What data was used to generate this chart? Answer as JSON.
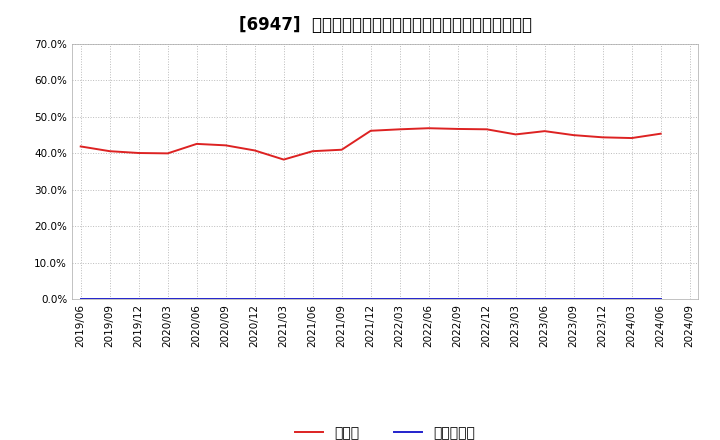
{
  "title": "[6947]  現預金、有利子負債の総資産に対する比率の推移",
  "x_labels": [
    "2019/06",
    "2019/09",
    "2019/12",
    "2020/03",
    "2020/06",
    "2020/09",
    "2020/12",
    "2021/03",
    "2021/06",
    "2021/09",
    "2021/12",
    "2022/03",
    "2022/06",
    "2022/09",
    "2022/12",
    "2023/03",
    "2023/06",
    "2023/09",
    "2023/12",
    "2024/03",
    "2024/06",
    "2024/09"
  ],
  "cash_values": [
    0.419,
    0.406,
    0.401,
    0.4,
    0.426,
    0.422,
    0.408,
    0.383,
    0.406,
    0.41,
    0.462,
    0.466,
    0.469,
    0.467,
    0.466,
    0.452,
    0.461,
    0.45,
    0.444,
    0.442,
    0.454,
    null
  ],
  "debt_values": [
    0.0,
    0.0,
    0.0,
    0.0,
    0.0,
    0.0,
    0.0,
    0.0,
    0.0,
    0.0,
    0.0,
    0.0,
    0.0,
    0.0,
    0.0,
    0.0,
    0.0,
    0.0,
    0.0,
    0.0,
    0.0,
    null
  ],
  "cash_color": "#dd2222",
  "debt_color": "#2222cc",
  "legend_cash": "現預金",
  "legend_debt": "有利子負債",
  "ylim": [
    0.0,
    0.7
  ],
  "yticks": [
    0.0,
    0.1,
    0.2,
    0.3,
    0.4,
    0.5,
    0.6,
    0.7
  ],
  "bg_color": "#ffffff",
  "grid_color": "#bbbbbb",
  "title_fontsize": 12,
  "axis_fontsize": 7.5,
  "legend_fontsize": 10
}
